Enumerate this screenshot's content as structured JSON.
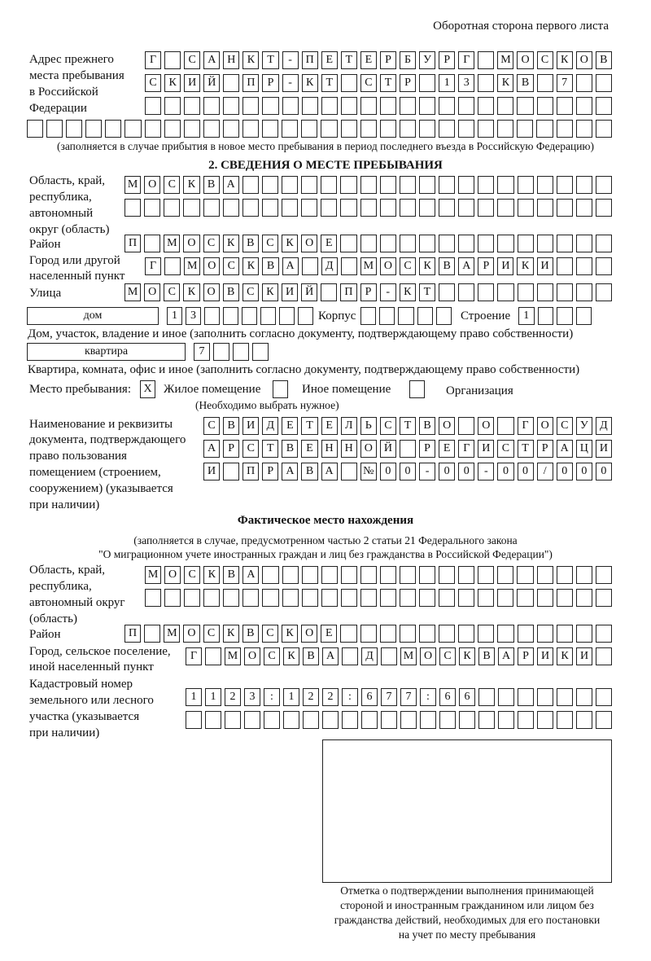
{
  "header": "Оборотная сторона первого листа",
  "previous_address": {
    "label": [
      "Адрес прежнего",
      "места пребывания",
      "в Российской",
      "Федерации"
    ],
    "rows": [
      [
        "Г",
        "",
        "С",
        "А",
        "Н",
        "К",
        "Т",
        "-",
        "П",
        "Е",
        "Т",
        "Е",
        "Р",
        "Б",
        "У",
        "Р",
        "Г",
        "",
        "М",
        "О",
        "С",
        "К",
        "О",
        "В"
      ],
      [
        "С",
        "К",
        "И",
        "Й",
        "",
        "П",
        "Р",
        "-",
        "К",
        "Т",
        "",
        "С",
        "Т",
        "Р",
        "",
        "1",
        "3",
        "",
        "К",
        "В",
        "",
        "7",
        "",
        ""
      ],
      [
        "",
        "",
        "",
        "",
        "",
        "",
        "",
        "",
        "",
        "",
        "",
        "",
        "",
        "",
        "",
        "",
        "",
        "",
        "",
        "",
        "",
        "",
        "",
        ""
      ],
      [
        "",
        "",
        "",
        "",
        "",
        "",
        "",
        "",
        "",
        "",
        "",
        "",
        "",
        "",
        "",
        "",
        "",
        "",
        "",
        "",
        "",
        "",
        "",
        "",
        "",
        "",
        "",
        "",
        "",
        ""
      ]
    ],
    "note": "(заполняется в случае прибытия в новое место пребывания в период последнего въезда в Российскую Федерацию)"
  },
  "section2": {
    "title": "2. СВЕДЕНИЯ О МЕСТЕ ПРЕБЫВАНИЯ",
    "region_label": [
      "Область, край,",
      "республика,",
      "автономный",
      "округ (область)"
    ],
    "region_rows": [
      [
        "М",
        "О",
        "С",
        "К",
        "В",
        "А",
        "",
        "",
        "",
        "",
        "",
        "",
        "",
        "",
        "",
        "",
        "",
        "",
        "",
        "",
        "",
        "",
        "",
        "",
        ""
      ],
      [
        "",
        "",
        "",
        "",
        "",
        "",
        "",
        "",
        "",
        "",
        "",
        "",
        "",
        "",
        "",
        "",
        "",
        "",
        "",
        "",
        "",
        "",
        "",
        "",
        ""
      ]
    ],
    "district_label": "Район",
    "district_row": [
      "П",
      "",
      "М",
      "О",
      "С",
      "К",
      "В",
      "С",
      "К",
      "О",
      "Е",
      "",
      "",
      "",
      "",
      "",
      "",
      "",
      "",
      "",
      "",
      "",
      "",
      "",
      ""
    ],
    "city_label": [
      "Город или другой",
      "населенный пункт"
    ],
    "city_row": [
      "Г",
      "",
      "М",
      "О",
      "С",
      "К",
      "В",
      "А",
      "",
      "Д",
      "",
      "М",
      "О",
      "С",
      "К",
      "В",
      "А",
      "Р",
      "И",
      "К",
      "И",
      "",
      "",
      ""
    ],
    "street_label": "Улица",
    "street_row": [
      "М",
      "О",
      "С",
      "К",
      "О",
      "В",
      "С",
      "К",
      "И",
      "Й",
      "",
      "П",
      "Р",
      "-",
      "К",
      "Т",
      "",
      "",
      "",
      "",
      "",
      "",
      "",
      "",
      ""
    ],
    "house_type": "дом",
    "house_cells": [
      "1",
      "3",
      "",
      "",
      "",
      "",
      "",
      ""
    ],
    "korpus_label": "Корпус",
    "korpus_cells": [
      "",
      "",
      "",
      "",
      ""
    ],
    "building_label": "Строение",
    "building_cells": [
      "1",
      "",
      "",
      ""
    ],
    "house_note": "Дом, участок, владение и иное (заполнить согласно документу, подтверждающему право собственности)",
    "apt_type": "квартира",
    "apt_cells": [
      "7",
      "",
      "",
      ""
    ],
    "apt_note": "Квартира, комната, офис и иное (заполнить согласно документу, подтверждающему право собственности)",
    "stay_label": "Место пребывания:",
    "options": [
      {
        "label": "Жилое помещение",
        "mark": "X"
      },
      {
        "label": "Иное помещение",
        "mark": ""
      },
      {
        "label": "Организация",
        "mark": ""
      }
    ],
    "choose_note": "(Необходимо выбрать нужное)",
    "doc_label": [
      "Наименование и реквизиты",
      "документа, подтверждающего",
      "право пользования",
      "помещением (строением,",
      "сооружением) (указывается",
      "при наличии)"
    ],
    "doc_rows": [
      [
        "С",
        "В",
        "И",
        "Д",
        "Е",
        "Т",
        "Е",
        "Л",
        "Ь",
        "С",
        "Т",
        "В",
        "О",
        "",
        "О",
        "",
        "Г",
        "О",
        "С",
        "У",
        "Д"
      ],
      [
        "А",
        "Р",
        "С",
        "Т",
        "В",
        "Е",
        "Н",
        "Н",
        "О",
        "Й",
        "",
        "Р",
        "Е",
        "Г",
        "И",
        "С",
        "Т",
        "Р",
        "А",
        "Ц",
        "И"
      ],
      [
        "И",
        "",
        "П",
        "Р",
        "А",
        "В",
        "А",
        "",
        "№",
        "0",
        "0",
        "-",
        "0",
        "0",
        "-",
        "0",
        "0",
        "/",
        "0",
        "0",
        "0"
      ]
    ]
  },
  "actual": {
    "title": "Фактическое место нахождения",
    "note": [
      "(заполняется в случае, предусмотренном частью 2 статьи 21 Федерального закона",
      "\"О миграционном учете иностранных граждан и лиц без гражданства в Российской Федерации\")"
    ],
    "region_label": [
      "Область, край,",
      "республика,",
      "автономный округ",
      "(область)"
    ],
    "region_rows": [
      [
        "М",
        "О",
        "С",
        "К",
        "В",
        "А",
        "",
        "",
        "",
        "",
        "",
        "",
        "",
        "",
        "",
        "",
        "",
        "",
        "",
        "",
        "",
        "",
        "",
        ""
      ],
      [
        "",
        "",
        "",
        "",
        "",
        "",
        "",
        "",
        "",
        "",
        "",
        "",
        "",
        "",
        "",
        "",
        "",
        "",
        "",
        "",
        "",
        "",
        "",
        ""
      ]
    ],
    "district_label": "Район",
    "district_row": [
      "П",
      "",
      "М",
      "О",
      "С",
      "К",
      "В",
      "С",
      "К",
      "О",
      "Е",
      "",
      "",
      "",
      "",
      "",
      "",
      "",
      "",
      "",
      "",
      "",
      "",
      "",
      ""
    ],
    "city_label": [
      "Город, сельское поселение,",
      "иной населенный пункт"
    ],
    "city_row": [
      "Г",
      "",
      "М",
      "О",
      "С",
      "К",
      "В",
      "А",
      "",
      "Д",
      "",
      "М",
      "О",
      "С",
      "К",
      "В",
      "А",
      "Р",
      "И",
      "К",
      "И",
      ""
    ],
    "cadastral_label": [
      "Кадастровый номер",
      "земельного или лесного",
      "участка (указывается",
      "при наличии)"
    ],
    "cadastral_rows": [
      [
        "1",
        "1",
        "2",
        "3",
        ":",
        "1",
        "2",
        "2",
        ":",
        "6",
        "7",
        "7",
        ":",
        "6",
        "6",
        "",
        "",
        "",
        "",
        "",
        "",
        ""
      ],
      [
        "",
        "",
        "",
        "",
        "",
        "",
        "",
        "",
        "",
        "",
        "",
        "",
        "",
        "",
        "",
        "",
        "",
        "",
        "",
        "",
        "",
        ""
      ]
    ]
  },
  "stamp_caption": [
    "Отметка о подтверждении выполнения принимающей",
    "стороной и иностранным гражданином или лицом без",
    "гражданства действий, необходимых для его постановки",
    "на учет по месту пребывания"
  ]
}
